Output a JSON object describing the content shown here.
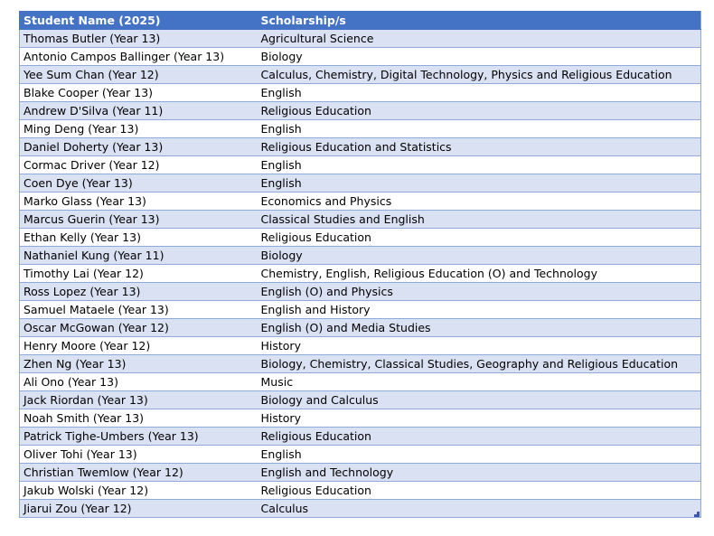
{
  "table": {
    "headers": {
      "name": "Student Name (2025)",
      "scholarship": "Scholarship/s"
    },
    "colors": {
      "header_bg": "#4472C4",
      "header_text": "#FFFFFF",
      "band_bg": "#D9E1F2",
      "border": "#8EA9DB"
    },
    "rows": [
      {
        "name": "Thomas Butler (Year 13)",
        "scholarship": "Agricultural Science"
      },
      {
        "name": "Antonio Campos Ballinger (Year 13)",
        "scholarship": "Biology"
      },
      {
        "name": "Yee Sum Chan (Year 12)",
        "scholarship": "Calculus, Chemistry, Digital Technology, Physics and Religious Education"
      },
      {
        "name": "Blake Cooper (Year 13)",
        "scholarship": "English"
      },
      {
        "name": "Andrew D'Silva (Year 11)",
        "scholarship": "Religious Education"
      },
      {
        "name": "Ming Deng (Year 13)",
        "scholarship": "English"
      },
      {
        "name": "Daniel Doherty (Year 13)",
        "scholarship": "Religious Education and Statistics"
      },
      {
        "name": "Cormac Driver (Year 12)",
        "scholarship": "English"
      },
      {
        "name": "Coen Dye (Year 13)",
        "scholarship": "English"
      },
      {
        "name": "Marko Glass (Year 13)",
        "scholarship": "Economics and Physics"
      },
      {
        "name": "Marcus Guerin (Year 13)",
        "scholarship": "Classical Studies and English"
      },
      {
        "name": "Ethan Kelly (Year 13)",
        "scholarship": "Religious Education"
      },
      {
        "name": "Nathaniel Kung (Year 11)",
        "scholarship": "Biology"
      },
      {
        "name": "Timothy Lai (Year 12)",
        "scholarship": "Chemistry, English, Religious Education (O) and Technology"
      },
      {
        "name": "Ross Lopez (Year 13)",
        "scholarship": "English (O) and Physics"
      },
      {
        "name": "Samuel Mataele (Year 13)",
        "scholarship": "English and History"
      },
      {
        "name": "Oscar McGowan (Year 12)",
        "scholarship": "English (O) and Media Studies"
      },
      {
        "name": "Henry Moore (Year 12)",
        "scholarship": "History"
      },
      {
        "name": "Zhen Ng (Year 13)",
        "scholarship": "Biology, Chemistry, Classical Studies, Geography and Religious Education"
      },
      {
        "name": "Ali Ono (Year 13)",
        "scholarship": "Music"
      },
      {
        "name": "Jack Riordan (Year 13)",
        "scholarship": "Biology and Calculus"
      },
      {
        "name": "Noah Smith (Year 13)",
        "scholarship": "History"
      },
      {
        "name": "Patrick Tighe-Umbers (Year 13)",
        "scholarship": "Religious Education"
      },
      {
        "name": "Oliver Tohi (Year 13)",
        "scholarship": "English"
      },
      {
        "name": "Christian Twemlow (Year 12)",
        "scholarship": "English and Technology"
      },
      {
        "name": "Jakub Wolski (Year 12)",
        "scholarship": "Religious Education"
      },
      {
        "name": "Jiarui Zou (Year 12)",
        "scholarship": "Calculus"
      }
    ],
    "resize_handle_icon": "table-resize-handle-icon"
  }
}
